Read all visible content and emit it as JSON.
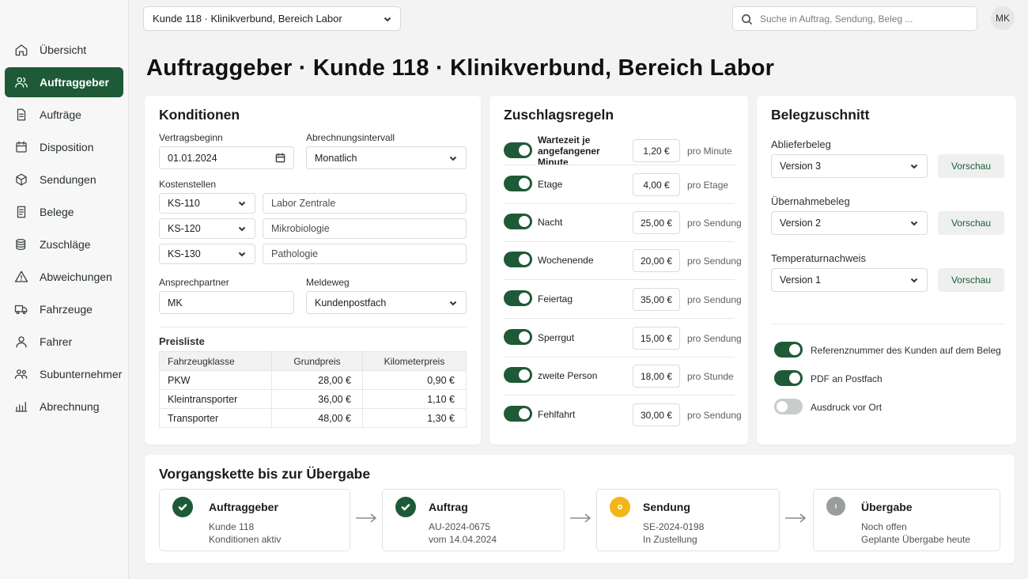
{
  "nav": {
    "items": [
      {
        "label": "Übersicht",
        "icon": "home-icon"
      },
      {
        "label": "Auftraggeber",
        "icon": "users-icon",
        "active": true
      },
      {
        "label": "Aufträge",
        "icon": "document-icon"
      },
      {
        "label": "Disposition",
        "icon": "calendar-icon"
      },
      {
        "label": "Sendungen",
        "icon": "box-icon"
      },
      {
        "label": "Belege",
        "icon": "receipt-icon"
      },
      {
        "label": "Zuschläge",
        "icon": "coins-icon"
      },
      {
        "label": "Abweichungen",
        "icon": "warning-icon"
      },
      {
        "label": "Fahrzeuge",
        "icon": "truck-icon"
      },
      {
        "label": "Fahrer",
        "icon": "person-icon"
      },
      {
        "label": "Subunternehmer",
        "icon": "group-icon"
      },
      {
        "label": "Abrechnung",
        "icon": "bar-chart-icon"
      }
    ]
  },
  "topbar": {
    "client_select": "Kunde 118 · Klinikverbund, Bereich Labor",
    "search_placeholder": "Suche in Auftrag, Sendung, Beleg ...",
    "avatar": "MK"
  },
  "page_title": "Auftraggeber · Kunde 118 · Klinikverbund, Bereich Labor",
  "konditionen": {
    "title": "Konditionen",
    "vertragsbeginn_label": "Vertragsbeginn",
    "vertragsbeginn_value": "01.01.2024",
    "intervall_label": "Abrechnungsintervall",
    "intervall_value": "Monatlich",
    "kostenstellen_label": "Kostenstellen",
    "kostenstellen": [
      {
        "code": "KS-110",
        "name": "Labor Zentrale"
      },
      {
        "code": "KS-120",
        "name": "Mikrobiologie"
      },
      {
        "code": "KS-130",
        "name": "Pathologie"
      }
    ],
    "ansprechpartner_label": "Ansprechpartner",
    "ansprechpartner_value": "MK",
    "meldeweg_label": "Meldeweg",
    "meldeweg_value": "Kundenpostfach",
    "preisliste_label": "Preisliste",
    "preisliste_headers": [
      "Fahrzeugklasse",
      "Grundpreis",
      "Kilometerpreis"
    ],
    "preisliste_rows": [
      {
        "klasse": "PKW",
        "grund": "28,00 €",
        "km": "0,90 €"
      },
      {
        "klasse": "Kleintransporter",
        "grund": "36,00 €",
        "km": "1,10 €"
      },
      {
        "klasse": "Transporter",
        "grund": "48,00 €",
        "km": "1,30 €"
      }
    ]
  },
  "zuschlag": {
    "title": "Zuschlagsregeln",
    "rules": [
      {
        "name": "Wartezeit je angefangener Minute",
        "value": "1,20 €",
        "unit": "pro Minute",
        "on": true
      },
      {
        "name": "Etage",
        "value": "4,00 €",
        "unit": "pro Etage",
        "on": true
      },
      {
        "name": "Nacht",
        "value": "25,00 €",
        "unit": "pro Sendung",
        "on": true
      },
      {
        "name": "Wochenende",
        "value": "20,00 €",
        "unit": "pro Sendung",
        "on": true
      },
      {
        "name": "Feiertag",
        "value": "35,00 €",
        "unit": "pro Sendung",
        "on": true
      },
      {
        "name": "Sperrgut",
        "value": "15,00 €",
        "unit": "pro Sendung",
        "on": true
      },
      {
        "name": "zweite Person",
        "value": "18,00 €",
        "unit": "pro Stunde",
        "on": true
      },
      {
        "name": "Fehlfahrt",
        "value": "30,00 €",
        "unit": "pro Sendung",
        "on": true
      }
    ]
  },
  "beleg": {
    "title": "Belegzuschnitt",
    "rows": [
      {
        "label": "Ablieferbeleg",
        "value": "Version 3",
        "button": "Vorschau"
      },
      {
        "label": "Übernahmebeleg",
        "value": "Version 2",
        "button": "Vorschau"
      },
      {
        "label": "Temperaturnachweis",
        "value": "Version 1",
        "button": "Vorschau"
      }
    ],
    "toggles": [
      {
        "label": "Referenznummer des Kunden auf dem Beleg",
        "on": true
      },
      {
        "label": "PDF an Postfach",
        "on": true
      },
      {
        "label": "Ausdruck vor Ort",
        "on": false
      }
    ]
  },
  "kette": {
    "title": "Vorgangskette bis zur Übergabe",
    "steps": [
      {
        "title": "Auftraggeber",
        "line1": "Kunde 118",
        "line2": "Konditionen aktiv",
        "status": "done"
      },
      {
        "title": "Auftrag",
        "line1": "AU-2024-0675",
        "line2": "vom 14.04.2024",
        "status": "done"
      },
      {
        "title": "Sendung",
        "line1": "SE-2024-0198",
        "line2": "In Zustellung",
        "status": "active"
      },
      {
        "title": "Übergabe",
        "line1": "Noch offen",
        "line2": "Geplante Übergabe heute",
        "status": "pending"
      }
    ]
  },
  "colors": {
    "accent": "#1e5a37",
    "active_step": "#f2b51a",
    "pending_step": "#9a9e9b"
  }
}
